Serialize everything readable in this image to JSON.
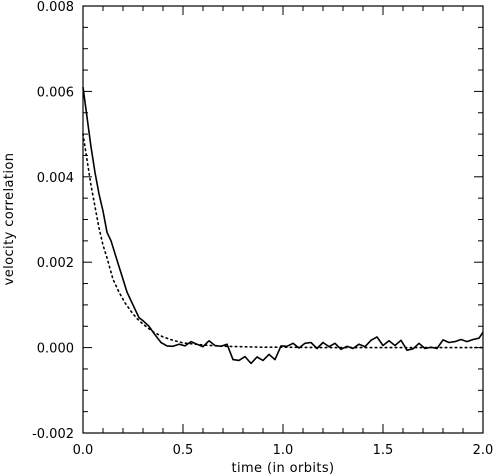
{
  "chart_data": {
    "type": "line",
    "xlabel": "time (in orbits)",
    "ylabel": "velocity correlation",
    "xlim": [
      0.0,
      2.0
    ],
    "ylim": [
      -0.002,
      0.008
    ],
    "grid": false,
    "x_ticks": [
      0.0,
      0.5,
      1.0,
      1.5,
      2.0
    ],
    "x_tick_labels": [
      "0.0",
      "0.5",
      "1.0",
      "1.5",
      "2.0"
    ],
    "y_ticks": [
      -0.002,
      0.0,
      0.002,
      0.004,
      0.006,
      0.008
    ],
    "y_tick_labels": [
      "-0.002",
      "0.000",
      "0.002",
      "0.004",
      "0.006",
      "0.008"
    ],
    "series": [
      {
        "style": "solid",
        "x": [
          0.0,
          0.02,
          0.04,
          0.06,
          0.08,
          0.1,
          0.12,
          0.14,
          0.16,
          0.18,
          0.2,
          0.22,
          0.24,
          0.26,
          0.28,
          0.3,
          0.33,
          0.36,
          0.39,
          0.42,
          0.45,
          0.48,
          0.51,
          0.54,
          0.57,
          0.6,
          0.63,
          0.66,
          0.69,
          0.72,
          0.75,
          0.78,
          0.81,
          0.84,
          0.87,
          0.9,
          0.93,
          0.96,
          0.99,
          1.02,
          1.05,
          1.08,
          1.11,
          1.14,
          1.17,
          1.2,
          1.23,
          1.26,
          1.29,
          1.32,
          1.35,
          1.38,
          1.41,
          1.44,
          1.47,
          1.5,
          1.53,
          1.56,
          1.59,
          1.62,
          1.65,
          1.68,
          1.71,
          1.74,
          1.77,
          1.8,
          1.83,
          1.86,
          1.89,
          1.92,
          1.95,
          1.98,
          2.0
        ],
        "y": [
          0.0061,
          0.0054,
          0.0047,
          0.0041,
          0.0036,
          0.0032,
          0.0027,
          0.0025,
          0.0022,
          0.0019,
          0.0016,
          0.0013,
          0.0011,
          0.0009,
          0.0007,
          0.00063,
          0.0005,
          0.0003,
          0.00012,
          4e-05,
          3e-05,
          8e-05,
          4e-05,
          0.00014,
          8e-05,
          2e-05,
          0.00016,
          5e-05,
          3e-05,
          8e-05,
          -0.00028,
          -0.0003,
          -0.00021,
          -0.00037,
          -0.00022,
          -0.0003,
          -0.00016,
          -0.00028,
          4e-05,
          3e-05,
          0.0001,
          -1e-05,
          0.0001,
          0.00012,
          -2e-05,
          0.00012,
          2e-05,
          0.0001,
          -4e-05,
          3e-05,
          -2e-05,
          8e-05,
          2e-05,
          0.00017,
          0.00025,
          5e-05,
          0.00016,
          5e-05,
          0.00017,
          -6e-05,
          -3e-05,
          0.0001,
          -2e-05,
          1e-05,
          -2e-05,
          0.00018,
          0.00012,
          0.00014,
          0.00019,
          0.00014,
          0.00019,
          0.00022,
          0.00036
        ]
      },
      {
        "style": "dotted",
        "x": [
          0.0,
          0.02,
          0.04,
          0.06,
          0.08,
          0.1,
          0.12,
          0.15,
          0.18,
          0.21,
          0.24,
          0.27,
          0.3,
          0.35,
          0.4,
          0.45,
          0.5,
          0.6,
          0.7,
          0.8,
          0.9,
          1.0,
          1.2,
          1.4,
          1.6,
          1.8,
          2.0
        ],
        "y": [
          0.005,
          0.0044,
          0.0038,
          0.0033,
          0.0028,
          0.0024,
          0.0021,
          0.0016,
          0.0013,
          0.00105,
          0.00085,
          0.00068,
          0.00055,
          0.00037,
          0.00025,
          0.00017,
          0.00011,
          6e-05,
          3e-05,
          2e-05,
          1e-05,
          1e-05,
          0.0,
          0.0,
          0.0,
          0.0,
          0.0
        ]
      }
    ]
  }
}
